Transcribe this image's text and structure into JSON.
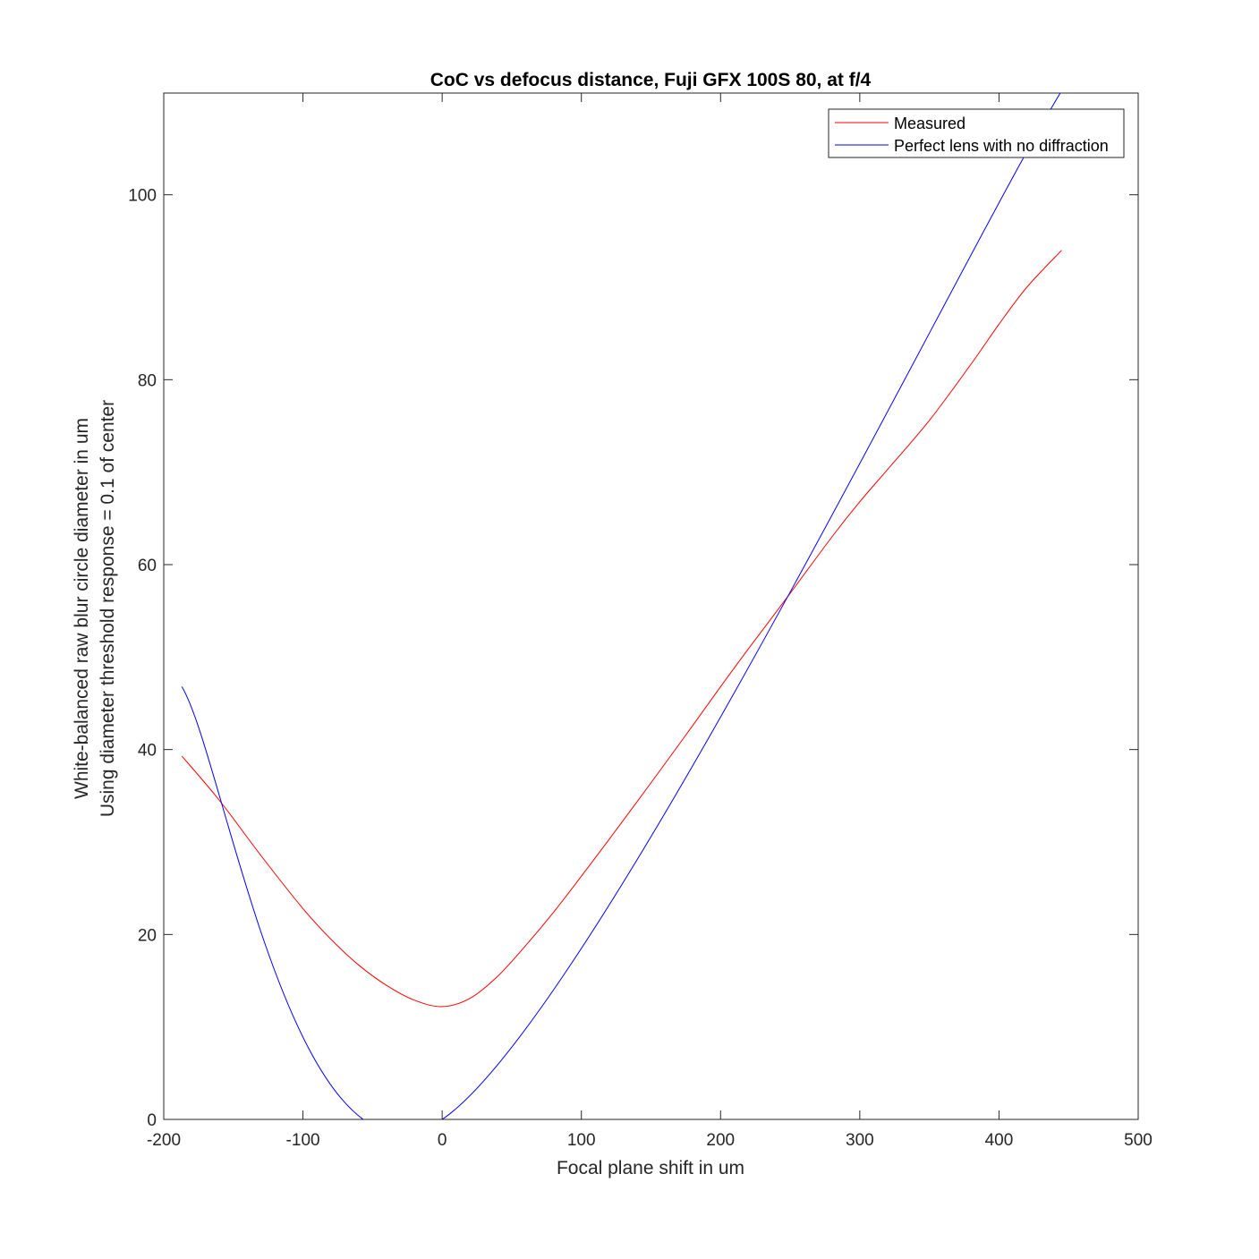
{
  "chart_data": {
    "type": "line",
    "title": "CoC vs defocus distance, Fuji GFX 100S 80, at f/4",
    "xlabel": "Focal plane shift in um",
    "ylabel": [
      "White-balanced raw blur circle diameter in um",
      "Using diameter threshold response = 0.1 of center"
    ],
    "xlim": [
      -200,
      500
    ],
    "ylim": [
      0,
      111
    ],
    "xticks": [
      -200,
      -100,
      0,
      100,
      200,
      300,
      400,
      500
    ],
    "xtick_labels": [
      "-200",
      "-100",
      "0",
      "100",
      "200",
      "300",
      "400",
      "500"
    ],
    "yticks": [
      0,
      20,
      40,
      60,
      80,
      100
    ],
    "ytick_labels": [
      "0",
      "20",
      "40",
      "60",
      "80",
      "100"
    ],
    "grid": false,
    "legend_position": "top-right",
    "series": [
      {
        "name": "Measured",
        "color": "#ff0000",
        "x": [
          -187,
          -160,
          -130,
          -100,
          -80,
          -60,
          -40,
          -20,
          0,
          20,
          40,
          60,
          80,
          100,
          120,
          150,
          180,
          200,
          220,
          250,
          280,
          300,
          320,
          350,
          380,
          400,
          420,
          445
        ],
        "y": [
          39.3,
          34.5,
          28.5,
          22.8,
          19.5,
          16.7,
          14.5,
          12.9,
          12.2,
          13.1,
          15.5,
          18.8,
          22.4,
          26.3,
          30.3,
          36.4,
          42.6,
          46.8,
          50.9,
          56.9,
          63.0,
          66.8,
          70.3,
          75.6,
          81.7,
          86.0,
          90.0,
          94.0
        ]
      },
      {
        "name": "Perfect lens with no diffraction",
        "color": "#0000ff",
        "x": [
          -187,
          0,
          444
        ],
        "y": [
          46.8,
          0,
          111.0
        ]
      }
    ]
  }
}
